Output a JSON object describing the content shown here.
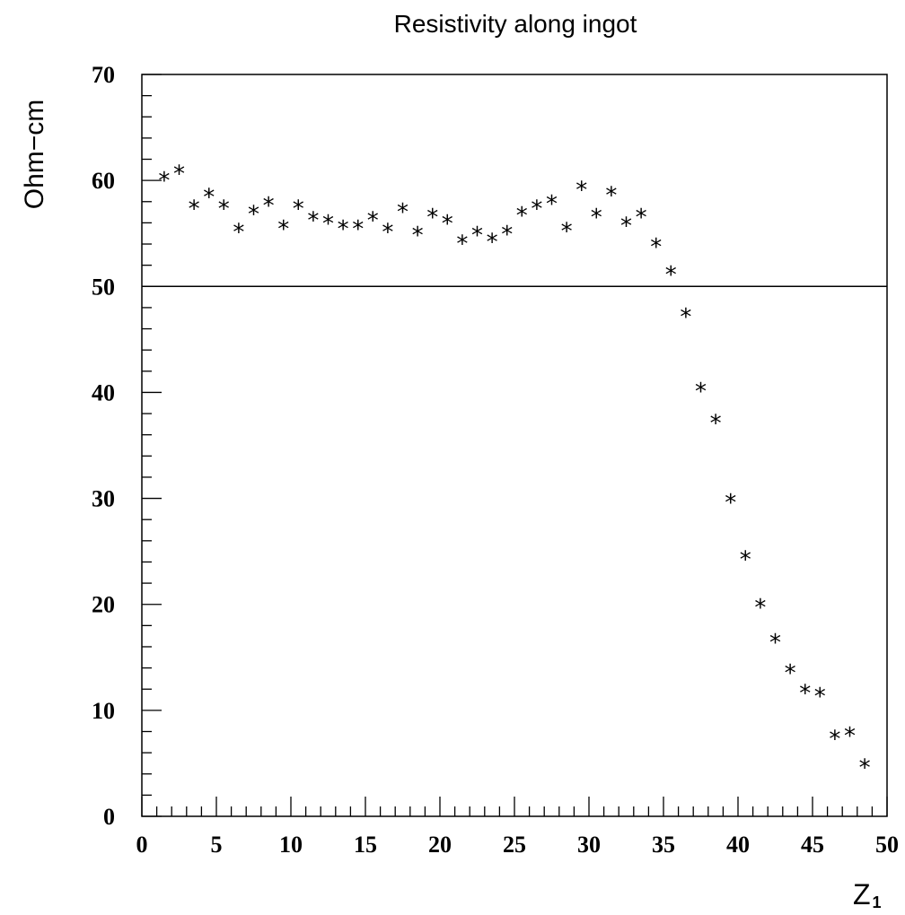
{
  "chart_data": {
    "type": "scatter",
    "title": "Resistivity along ingot",
    "ylabel": "Ohm−cm",
    "xlabel_main": "Z",
    "xlabel_sub": "1",
    "xlim": [
      0,
      50
    ],
    "ylim": [
      0,
      70
    ],
    "xticks": [
      0,
      5,
      10,
      15,
      20,
      25,
      30,
      35,
      40,
      45,
      50
    ],
    "yticks": [
      0,
      10,
      20,
      30,
      40,
      50,
      60,
      70
    ],
    "xtick_labels": [
      "0",
      "5",
      "10",
      "15",
      "20",
      "25",
      "30",
      "35",
      "40",
      "45",
      "50"
    ],
    "ytick_labels": [
      "0",
      "10",
      "20",
      "30",
      "40",
      "50",
      "60",
      "70"
    ],
    "reference_line_y": 50,
    "marker": "*",
    "grid": false,
    "x": [
      1.5,
      2.5,
      3.5,
      4.5,
      5.5,
      6.5,
      7.5,
      8.5,
      9.5,
      10.5,
      11.5,
      12.5,
      13.5,
      14.5,
      15.5,
      16.5,
      17.5,
      18.5,
      19.5,
      20.5,
      21.5,
      22.5,
      23.5,
      24.5,
      25.5,
      26.5,
      27.5,
      28.5,
      29.5,
      30.5,
      31.5,
      32.5,
      33.5,
      34.5,
      35.5,
      36.5,
      37.5,
      38.5,
      39.5,
      40.5,
      41.5,
      42.5,
      43.5,
      44.5,
      45.5,
      46.5,
      47.5,
      48.5
    ],
    "y": [
      60.2,
      60.8,
      57.5,
      58.6,
      57.5,
      55.3,
      57.0,
      57.8,
      55.6,
      57.5,
      56.4,
      56.1,
      55.6,
      55.6,
      56.4,
      55.3,
      57.2,
      55.0,
      56.7,
      56.1,
      54.2,
      55.0,
      54.4,
      55.1,
      56.9,
      57.5,
      58.0,
      55.4,
      59.3,
      56.7,
      58.8,
      55.9,
      56.7,
      53.9,
      51.3,
      47.3,
      40.3,
      37.3,
      29.8,
      24.4,
      19.9,
      16.6,
      13.7,
      11.8,
      11.5,
      7.5,
      7.8,
      4.8
    ]
  }
}
